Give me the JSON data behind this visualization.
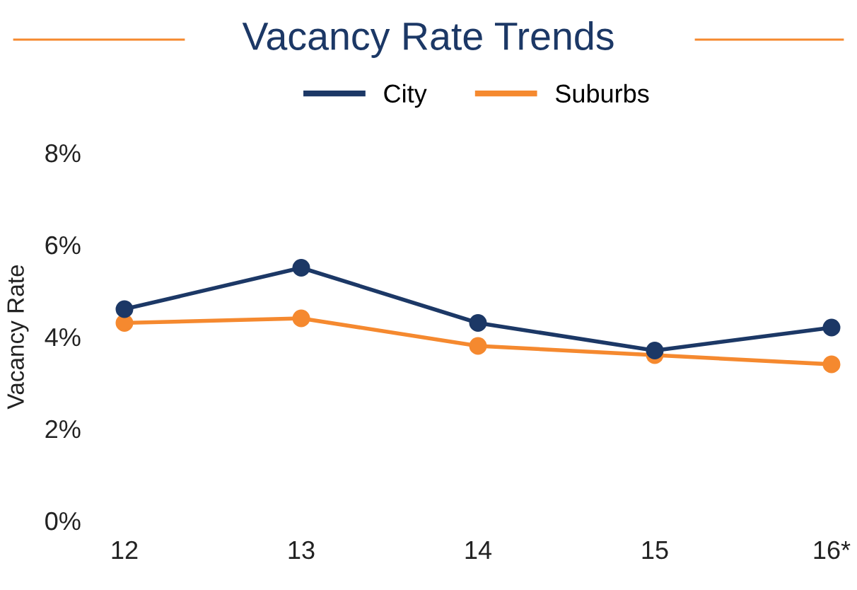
{
  "chart_data": {
    "type": "line",
    "title": "Vacancy Rate Trends",
    "ylabel": "Vacancy Rate",
    "categories": [
      "12",
      "13",
      "14",
      "15",
      "16*"
    ],
    "series": [
      {
        "name": "City",
        "color": "#1c3866",
        "values": [
          4.6,
          5.5,
          4.3,
          3.7,
          4.2
        ]
      },
      {
        "name": "Suburbs",
        "color": "#f5892f",
        "values": [
          4.3,
          4.4,
          3.8,
          3.6,
          3.4
        ]
      }
    ],
    "ylim": [
      0,
      8
    ],
    "yticks": [
      {
        "value": 0,
        "label": "0%"
      },
      {
        "value": 2,
        "label": "2%"
      },
      {
        "value": 4,
        "label": "4%"
      },
      {
        "value": 6,
        "label": "6%"
      },
      {
        "value": 8,
        "label": "8%"
      }
    ],
    "grid": false,
    "legend": "top",
    "marker": "circle",
    "line_style": "solid"
  }
}
